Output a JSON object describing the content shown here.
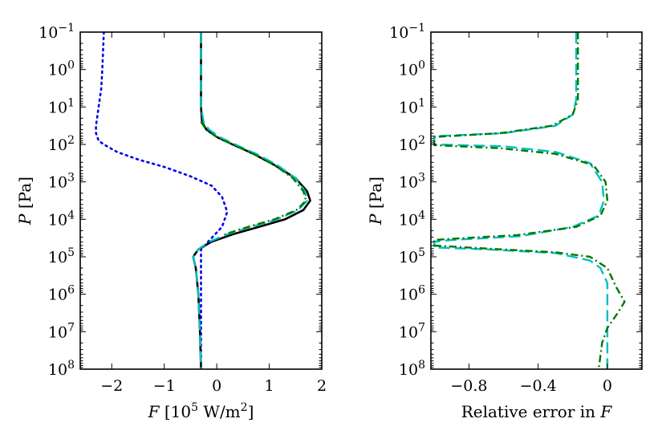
{
  "chart_data": [
    {
      "type": "line",
      "panel": "left",
      "ylabel": "P [Pa]",
      "yscale": "log",
      "yinverted": true,
      "ylim_exp": [
        -1,
        8
      ],
      "y_tick_exponents": [
        "−1",
        "0",
        "1",
        "2",
        "3",
        "4",
        "5",
        "6",
        "7",
        "8"
      ],
      "xlabel": "F [10^5 W/m^2]",
      "xlabel_parts": {
        "prefix": "F [10",
        "exp": "5",
        "unit": " W/m",
        "unit_exp": "2",
        "suffix": "]"
      },
      "xlim": [
        -2.6,
        2.0
      ],
      "x_ticks": [
        -2,
        -1,
        0,
        1,
        2
      ],
      "x_tick_labels": [
        "−2",
        "−1",
        "0",
        "1",
        "2"
      ],
      "series": [
        {
          "name": "blue-dotted",
          "color": "#0000ee",
          "style": "dotted",
          "points": [
            [
              -2.15,
              -1.0
            ],
            [
              -2.18,
              0.0
            ],
            [
              -2.2,
              0.5
            ],
            [
              -2.25,
              1.0
            ],
            [
              -2.3,
              1.5
            ],
            [
              -2.3,
              1.7
            ],
            [
              -2.25,
              1.9
            ],
            [
              -2.15,
              2.0
            ],
            [
              -1.9,
              2.2
            ],
            [
              -1.5,
              2.4
            ],
            [
              -1.0,
              2.6
            ],
            [
              -0.5,
              2.85
            ],
            [
              -0.1,
              3.1
            ],
            [
              0.1,
              3.4
            ],
            [
              0.2,
              3.8
            ],
            [
              0.1,
              4.2
            ],
            [
              -0.1,
              4.5
            ],
            [
              -0.3,
              4.8
            ],
            [
              -0.3,
              5.0
            ],
            [
              -0.3,
              5.5
            ],
            [
              -0.3,
              6.5
            ],
            [
              -0.3,
              8.0
            ]
          ]
        },
        {
          "name": "black-solid",
          "color": "#000000",
          "style": "solid",
          "points": [
            [
              -0.3,
              -1.0
            ],
            [
              -0.3,
              0.0
            ],
            [
              -0.3,
              1.0
            ],
            [
              -0.28,
              1.4
            ],
            [
              -0.2,
              1.6
            ],
            [
              0.0,
              1.8
            ],
            [
              0.3,
              2.0
            ],
            [
              0.7,
              2.25
            ],
            [
              1.1,
              2.55
            ],
            [
              1.5,
              2.9
            ],
            [
              1.72,
              3.25
            ],
            [
              1.78,
              3.5
            ],
            [
              1.65,
              3.75
            ],
            [
              1.3,
              4.0
            ],
            [
              0.8,
              4.2
            ],
            [
              0.3,
              4.4
            ],
            [
              -0.1,
              4.6
            ],
            [
              -0.35,
              4.8
            ],
            [
              -0.45,
              5.0
            ],
            [
              -0.4,
              5.3
            ],
            [
              -0.35,
              6.0
            ],
            [
              -0.32,
              7.0
            ],
            [
              -0.3,
              8.0
            ]
          ]
        },
        {
          "name": "cyan-dashed",
          "color": "#00bfbf",
          "style": "dashed",
          "points": [
            [
              -0.3,
              -1.0
            ],
            [
              -0.3,
              0.0
            ],
            [
              -0.3,
              1.0
            ],
            [
              -0.25,
              1.4
            ],
            [
              -0.15,
              1.6
            ],
            [
              0.05,
              1.8
            ],
            [
              0.35,
              2.0
            ],
            [
              0.75,
              2.25
            ],
            [
              1.15,
              2.55
            ],
            [
              1.5,
              2.9
            ],
            [
              1.68,
              3.25
            ],
            [
              1.72,
              3.5
            ],
            [
              1.55,
              3.75
            ],
            [
              1.15,
              4.0
            ],
            [
              0.65,
              4.2
            ],
            [
              0.2,
              4.4
            ],
            [
              -0.15,
              4.6
            ],
            [
              -0.35,
              4.8
            ],
            [
              -0.45,
              5.0
            ],
            [
              -0.4,
              5.3
            ],
            [
              -0.35,
              6.0
            ],
            [
              -0.32,
              7.0
            ],
            [
              -0.3,
              8.0
            ]
          ]
        },
        {
          "name": "green-dashdot",
          "color": "#007700",
          "style": "dashdot",
          "points": [
            [
              -0.3,
              1.4
            ],
            [
              -0.2,
              1.6
            ],
            [
              0.0,
              1.8
            ],
            [
              0.3,
              2.0
            ],
            [
              0.7,
              2.25
            ],
            [
              1.1,
              2.55
            ],
            [
              1.45,
              2.9
            ],
            [
              1.65,
              3.25
            ],
            [
              1.7,
              3.5
            ],
            [
              1.52,
              3.75
            ],
            [
              1.1,
              4.0
            ],
            [
              0.6,
              4.2
            ],
            [
              0.15,
              4.4
            ]
          ]
        }
      ]
    },
    {
      "type": "line",
      "panel": "right",
      "ylabel": "P [Pa]",
      "yscale": "log",
      "yinverted": true,
      "ylim_exp": [
        -1,
        8
      ],
      "y_tick_exponents": [
        "−1",
        "0",
        "1",
        "2",
        "3",
        "4",
        "5",
        "6",
        "7",
        "8"
      ],
      "xlabel": "Relative error in F",
      "xlabel_parts": {
        "prefix": "Relative error in ",
        "var": "F"
      },
      "xlim": [
        -1.02,
        0.2
      ],
      "x_ticks": [
        -0.8,
        -0.4,
        0
      ],
      "x_tick_labels": [
        "−0.8",
        "−0.4",
        "0"
      ],
      "series": [
        {
          "name": "cyan-dashed",
          "color": "#00bfbf",
          "style": "dashed",
          "points": [
            [
              -0.18,
              -1.0
            ],
            [
              -0.18,
              0.0
            ],
            [
              -0.18,
              0.8
            ],
            [
              -0.2,
              1.2
            ],
            [
              -0.3,
              1.5
            ],
            [
              -0.6,
              1.7
            ],
            [
              -1.0,
              1.78
            ],
            [
              -1.0,
              2.0
            ],
            [
              -0.6,
              2.05
            ],
            [
              -0.3,
              2.2
            ],
            [
              -0.1,
              2.5
            ],
            [
              -0.03,
              3.0
            ],
            [
              -0.02,
              3.5
            ],
            [
              -0.05,
              3.9
            ],
            [
              -0.2,
              4.2
            ],
            [
              -0.5,
              4.45
            ],
            [
              -0.9,
              4.55
            ],
            [
              -1.0,
              4.6
            ],
            [
              -1.0,
              4.75
            ],
            [
              -0.7,
              4.8
            ],
            [
              -0.3,
              4.9
            ],
            [
              -0.1,
              5.1
            ],
            [
              -0.04,
              5.3
            ],
            [
              0.0,
              5.7
            ],
            [
              0.0,
              6.5
            ],
            [
              0.0,
              8.0
            ]
          ]
        },
        {
          "name": "green-dashdot",
          "color": "#007700",
          "style": "dashdot",
          "points": [
            [
              -0.17,
              -1.0
            ],
            [
              -0.17,
              0.0
            ],
            [
              -0.17,
              0.8
            ],
            [
              -0.2,
              1.2
            ],
            [
              -0.32,
              1.5
            ],
            [
              -0.62,
              1.7
            ],
            [
              -1.0,
              1.8
            ],
            [
              -1.0,
              2.02
            ],
            [
              -0.62,
              2.1
            ],
            [
              -0.3,
              2.25
            ],
            [
              -0.08,
              2.55
            ],
            [
              -0.01,
              3.0
            ],
            [
              0.0,
              3.5
            ],
            [
              -0.04,
              3.9
            ],
            [
              -0.18,
              4.2
            ],
            [
              -0.52,
              4.42
            ],
            [
              -0.9,
              4.52
            ],
            [
              -1.0,
              4.55
            ],
            [
              -1.0,
              4.7
            ],
            [
              -0.7,
              4.78
            ],
            [
              -0.3,
              4.88
            ],
            [
              -0.1,
              5.0
            ],
            [
              0.0,
              5.3
            ],
            [
              0.05,
              5.8
            ],
            [
              0.1,
              6.2
            ],
            [
              0.06,
              6.5
            ],
            [
              0.0,
              6.9
            ],
            [
              -0.03,
              7.3
            ],
            [
              -0.05,
              8.0
            ]
          ]
        }
      ]
    }
  ]
}
